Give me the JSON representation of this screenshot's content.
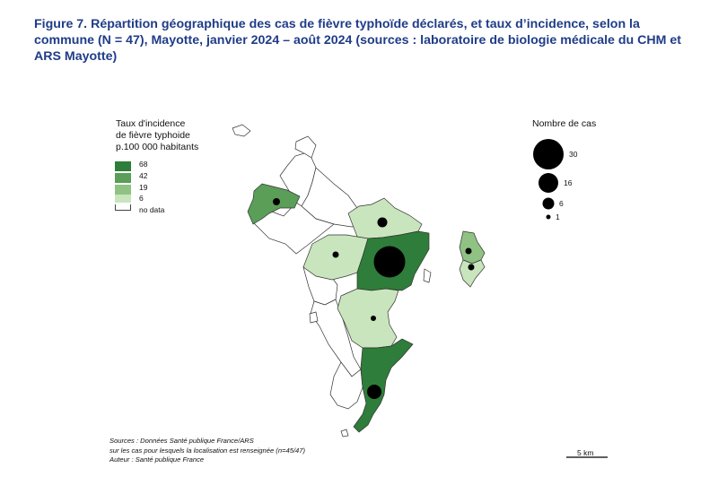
{
  "title": "Figure 7. Répartition géographique des cas de fièvre typhoïde déclarés, et taux d’incidence, selon la commune (N = 47), Mayotte, janvier 2024 – août 2024 (sources : laboratoire de biologie médicale du CHM et ARS Mayotte)",
  "legend_incidence": {
    "title_lines": [
      "Taux d'incidence",
      "de fièvre typhoide",
      "p.100 000 habitants"
    ],
    "classes": [
      {
        "label": "68",
        "color": "#2e7d3a"
      },
      {
        "label": "42",
        "color": "#5a9e58"
      },
      {
        "label": "19",
        "color": "#8fc283"
      },
      {
        "label": "6",
        "color": "#c9e5bd"
      },
      {
        "label": "no data",
        "color": "#ffffff"
      }
    ]
  },
  "legend_cases": {
    "title": "Nombre de cas",
    "sizes": [
      "30",
      "16",
      "6",
      "1"
    ]
  },
  "sources": [
    "Sources : Données Santé publique France/ARS",
    "sur les cas pour lesquels la localisation est renseignée (n=45/47)",
    "Auteur : Santé publique France"
  ],
  "scale": {
    "label": "5 km"
  },
  "colors": {
    "title": "#1f3c88",
    "outline": "#333333",
    "dot": "#000000"
  }
}
